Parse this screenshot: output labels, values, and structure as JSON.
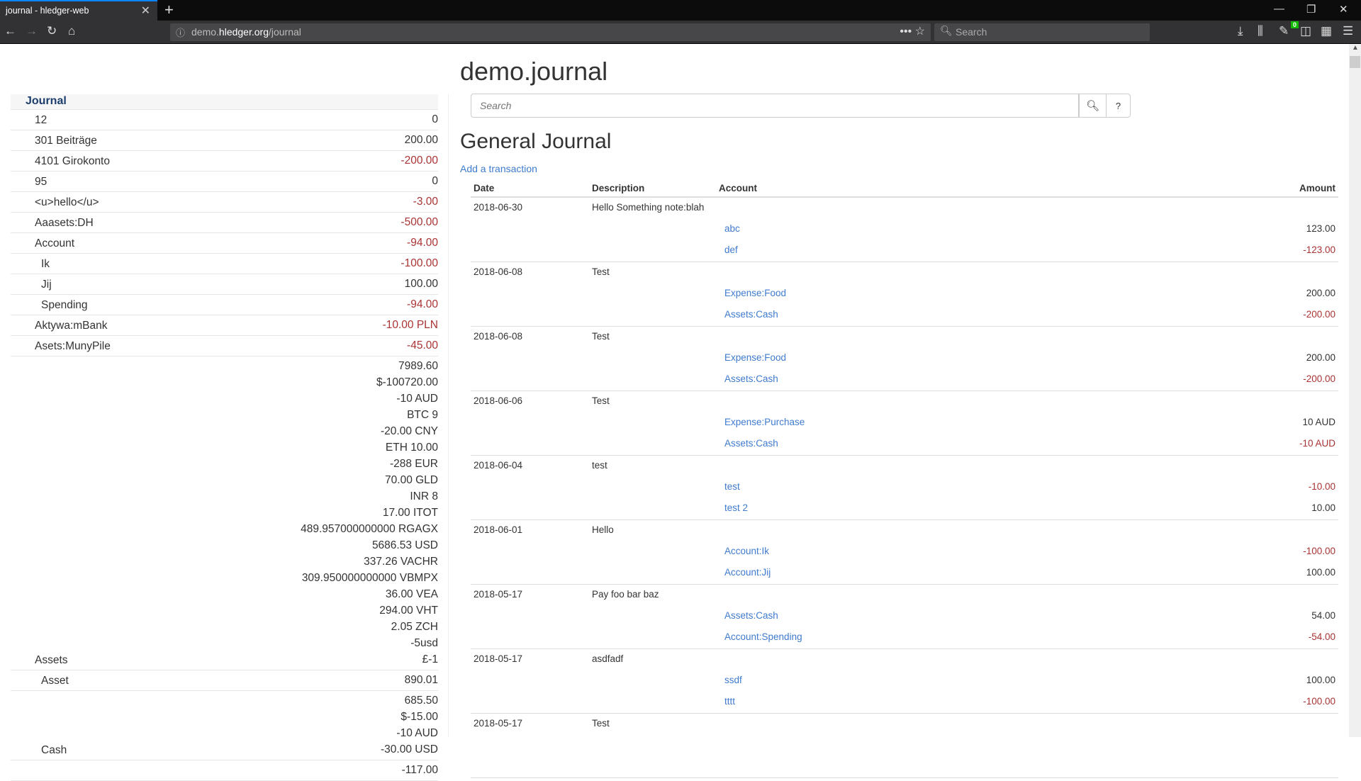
{
  "browser": {
    "tab_title": "journal - hledger-web",
    "url_host_prefix": "demo.",
    "url_host": "hledger.org",
    "url_path": "/journal",
    "search_placeholder": "Search",
    "badge_count": "0"
  },
  "sidebar": {
    "header": "Journal",
    "rows": [
      {
        "label": "12",
        "indent": 0,
        "amounts": [
          {
            "v": "0",
            "neg": false
          }
        ]
      },
      {
        "label": "301 Beiträge",
        "indent": 0,
        "amounts": [
          {
            "v": "200.00",
            "neg": false
          }
        ]
      },
      {
        "label": "4101 Girokonto",
        "indent": 0,
        "amounts": [
          {
            "v": "-200.00",
            "neg": true
          }
        ]
      },
      {
        "label": "95",
        "indent": 0,
        "amounts": [
          {
            "v": "0",
            "neg": false
          }
        ]
      },
      {
        "label": "<u>hello</u>",
        "indent": 0,
        "amounts": [
          {
            "v": "-3.00",
            "neg": true
          }
        ]
      },
      {
        "label": "Aaasets:DH",
        "indent": 0,
        "amounts": [
          {
            "v": "-500.00",
            "neg": true
          }
        ]
      },
      {
        "label": "Account",
        "indent": 0,
        "amounts": [
          {
            "v": "-94.00",
            "neg": true
          }
        ]
      },
      {
        "label": "Ik",
        "indent": 1,
        "amounts": [
          {
            "v": "-100.00",
            "neg": true
          }
        ]
      },
      {
        "label": "Jij",
        "indent": 1,
        "amounts": [
          {
            "v": "100.00",
            "neg": false
          }
        ]
      },
      {
        "label": "Spending",
        "indent": 1,
        "amounts": [
          {
            "v": "-94.00",
            "neg": true
          }
        ]
      },
      {
        "label": "Aktywa:mBank",
        "indent": 0,
        "amounts": [
          {
            "v": "-10.00 PLN",
            "neg": true
          }
        ]
      },
      {
        "label": "Asets:MunyPile",
        "indent": 0,
        "amounts": [
          {
            "v": "-45.00",
            "neg": true
          }
        ]
      },
      {
        "label": "Assets",
        "indent": 0,
        "amounts": [
          {
            "v": "7989.60",
            "neg": false
          },
          {
            "v": "$-100720.00",
            "neg": false
          },
          {
            "v": "-10 AUD",
            "neg": false
          },
          {
            "v": "BTC 9",
            "neg": false
          },
          {
            "v": "-20.00 CNY",
            "neg": false
          },
          {
            "v": "ETH 10.00",
            "neg": false
          },
          {
            "v": "-288 EUR",
            "neg": false
          },
          {
            "v": "70.00 GLD",
            "neg": false
          },
          {
            "v": "INR 8",
            "neg": false
          },
          {
            "v": "17.00 ITOT",
            "neg": false
          },
          {
            "v": "489.957000000000 RGAGX",
            "neg": false
          },
          {
            "v": "5686.53 USD",
            "neg": false
          },
          {
            "v": "337.26 VACHR",
            "neg": false
          },
          {
            "v": "309.950000000000 VBMPX",
            "neg": false
          },
          {
            "v": "36.00 VEA",
            "neg": false
          },
          {
            "v": "294.00 VHT",
            "neg": false
          },
          {
            "v": "2.05 ZCH",
            "neg": false
          },
          {
            "v": "-5usd",
            "neg": false
          },
          {
            "v": "£-1",
            "neg": false
          }
        ]
      },
      {
        "label": "Asset",
        "indent": 1,
        "amounts": [
          {
            "v": "890.01",
            "neg": false
          }
        ]
      },
      {
        "label": "Cash",
        "indent": 1,
        "amounts": [
          {
            "v": "685.50",
            "neg": false
          },
          {
            "v": "$-15.00",
            "neg": false
          },
          {
            "v": "-10 AUD",
            "neg": false
          },
          {
            "v": "-30.00 USD",
            "neg": false
          }
        ]
      },
      {
        "label": "",
        "indent": 1,
        "amounts": [
          {
            "v": "-117.00",
            "neg": false
          }
        ]
      }
    ]
  },
  "main": {
    "title": "demo.journal",
    "search_placeholder": "Search",
    "help_label": "?",
    "heading": "General Journal",
    "add_transaction": "Add a transaction",
    "columns": {
      "date": "Date",
      "description": "Description",
      "account": "Account",
      "amount": "Amount"
    },
    "transactions": [
      {
        "date": "2018-06-30",
        "description": "Hello Something note:blah",
        "postings": [
          {
            "account": "abc",
            "amount": "123.00",
            "neg": false
          },
          {
            "account": "def",
            "amount": "-123.00",
            "neg": true
          }
        ]
      },
      {
        "date": "2018-06-08",
        "description": "Test",
        "postings": [
          {
            "account": "Expense:Food",
            "amount": "200.00",
            "neg": false
          },
          {
            "account": "Assets:Cash",
            "amount": "-200.00",
            "neg": true
          }
        ]
      },
      {
        "date": "2018-06-08",
        "description": "Test",
        "postings": [
          {
            "account": "Expense:Food",
            "amount": "200.00",
            "neg": false
          },
          {
            "account": "Assets:Cash",
            "amount": "-200.00",
            "neg": true
          }
        ]
      },
      {
        "date": "2018-06-06",
        "description": "Test",
        "postings": [
          {
            "account": "Expense:Purchase",
            "amount": "10 AUD",
            "neg": false
          },
          {
            "account": "Assets:Cash",
            "amount": "-10 AUD",
            "neg": true
          }
        ]
      },
      {
        "date": "2018-06-04",
        "description": "test",
        "postings": [
          {
            "account": "test",
            "amount": "-10.00",
            "neg": true
          },
          {
            "account": "test 2",
            "amount": "10.00",
            "neg": false
          }
        ]
      },
      {
        "date": "2018-06-01",
        "description": "Hello",
        "postings": [
          {
            "account": "Account:Ik",
            "amount": "-100.00",
            "neg": true
          },
          {
            "account": "Account:Jij",
            "amount": "100.00",
            "neg": false
          }
        ]
      },
      {
        "date": "2018-05-17",
        "description": "Pay foo bar baz",
        "postings": [
          {
            "account": "Assets:Cash",
            "amount": "54.00",
            "neg": false
          },
          {
            "account": "Account:Spending",
            "amount": "-54.00",
            "neg": true
          }
        ]
      },
      {
        "date": "2018-05-17",
        "description": "asdfadf",
        "postings": [
          {
            "account": "ssdf",
            "amount": "100.00",
            "neg": false
          },
          {
            "account": "tttt",
            "amount": "-100.00",
            "neg": true
          }
        ]
      },
      {
        "date": "2018-05-17",
        "description": "Test",
        "postings": []
      }
    ]
  },
  "colors": {
    "negative": "#aa3333",
    "link": "#3f7bcf",
    "sidebar_header": "#1d3e6d"
  }
}
